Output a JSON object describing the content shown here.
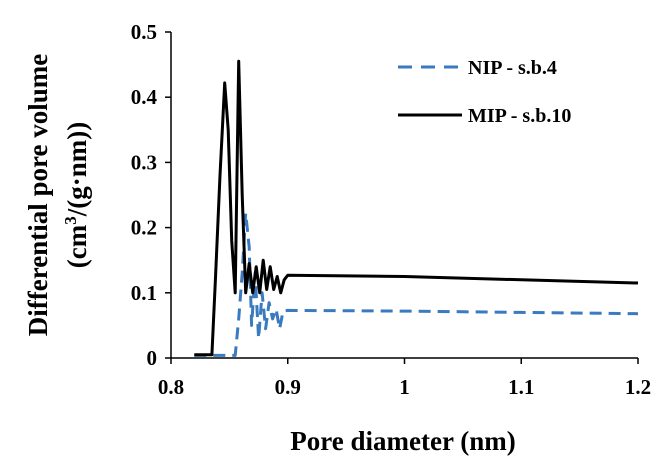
{
  "chart_data": {
    "type": "line",
    "xlabel": "Pore diameter (nm)",
    "ylabel_line1": "Differential pore volume",
    "ylabel_line2_base": "(cm",
    "ylabel_line2_sup": "3",
    "ylabel_line2_rest": "/(g·nm))",
    "xlim": [
      0.8,
      1.2
    ],
    "ylim": [
      0,
      0.5
    ],
    "xticks": [
      "0.8",
      "0.9",
      "1",
      "1.1",
      "1.2"
    ],
    "xtick_values": [
      0.8,
      0.9,
      1.0,
      1.1,
      1.2
    ],
    "yticks": [
      "0",
      "0.1",
      "0.2",
      "0.3",
      "0.4",
      "0.5"
    ],
    "ytick_values": [
      0,
      0.1,
      0.2,
      0.3,
      0.4,
      0.5
    ],
    "grid": false,
    "legend_position": "top-right",
    "series": [
      {
        "name": "NIP - s.b.4",
        "color": "#3a7abf",
        "dash": true,
        "points": [
          [
            0.82,
            0.004
          ],
          [
            0.855,
            0.004
          ],
          [
            0.858,
            0.06
          ],
          [
            0.861,
            0.13
          ],
          [
            0.864,
            0.222
          ],
          [
            0.867,
            0.17
          ],
          [
            0.869,
            0.05
          ],
          [
            0.872,
            0.13
          ],
          [
            0.875,
            0.03
          ],
          [
            0.878,
            0.1
          ],
          [
            0.881,
            0.045
          ],
          [
            0.884,
            0.085
          ],
          [
            0.887,
            0.06
          ],
          [
            0.89,
            0.075
          ],
          [
            0.893,
            0.045
          ],
          [
            0.896,
            0.072
          ],
          [
            0.9,
            0.073
          ],
          [
            1.0,
            0.072
          ],
          [
            1.1,
            0.07
          ],
          [
            1.2,
            0.068
          ]
        ]
      },
      {
        "name": "MIP - s.b.10",
        "color": "#000000",
        "dash": false,
        "points": [
          [
            0.82,
            0.005
          ],
          [
            0.835,
            0.005
          ],
          [
            0.838,
            0.12
          ],
          [
            0.842,
            0.28
          ],
          [
            0.846,
            0.422
          ],
          [
            0.849,
            0.35
          ],
          [
            0.852,
            0.18
          ],
          [
            0.855,
            0.1
          ],
          [
            0.858,
            0.455
          ],
          [
            0.861,
            0.25
          ],
          [
            0.864,
            0.1
          ],
          [
            0.867,
            0.145
          ],
          [
            0.87,
            0.1
          ],
          [
            0.873,
            0.14
          ],
          [
            0.876,
            0.1
          ],
          [
            0.879,
            0.15
          ],
          [
            0.882,
            0.105
          ],
          [
            0.885,
            0.14
          ],
          [
            0.888,
            0.105
          ],
          [
            0.891,
            0.125
          ],
          [
            0.894,
            0.1
          ],
          [
            0.897,
            0.12
          ],
          [
            0.9,
            0.127
          ],
          [
            1.0,
            0.125
          ],
          [
            1.1,
            0.12
          ],
          [
            1.2,
            0.115
          ]
        ]
      }
    ]
  }
}
